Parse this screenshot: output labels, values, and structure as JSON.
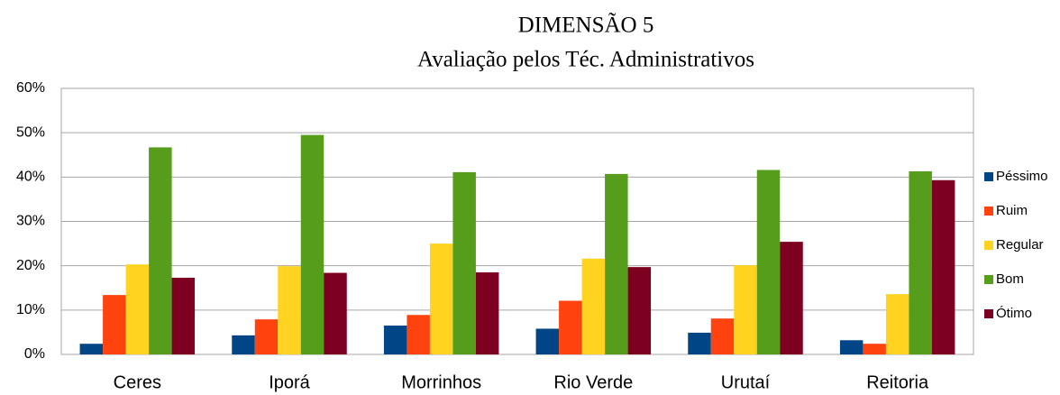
{
  "chart_data": {
    "type": "bar",
    "title": "DIMENSÃO 5",
    "subtitle": "Avaliação pelos Téc. Administrativos",
    "categories": [
      "Ceres",
      "Iporá",
      "Morrinhos",
      "Rio Verde",
      "Urutaí",
      "Reitoria"
    ],
    "series": [
      {
        "name": "Péssimo",
        "color": "#004586",
        "values": [
          2.4,
          4.3,
          6.5,
          5.8,
          4.9,
          3.2
        ]
      },
      {
        "name": "Ruim",
        "color": "#ff420e",
        "values": [
          13.4,
          7.9,
          8.9,
          12.1,
          8.1,
          2.4
        ]
      },
      {
        "name": "Regular",
        "color": "#ffd320",
        "values": [
          20.3,
          19.9,
          25.0,
          21.6,
          20.1,
          13.6
        ]
      },
      {
        "name": "Bom",
        "color": "#579d1c",
        "values": [
          46.7,
          49.5,
          41.1,
          40.7,
          41.6,
          41.3
        ]
      },
      {
        "name": "Ótimo",
        "color": "#7e0021",
        "values": [
          17.3,
          18.4,
          18.5,
          19.7,
          25.4,
          39.3
        ]
      }
    ],
    "ylim": [
      0,
      60
    ],
    "yticks": [
      {
        "value": 0,
        "label": "0%"
      },
      {
        "value": 10,
        "label": "10%"
      },
      {
        "value": 20,
        "label": "20%"
      },
      {
        "value": 30,
        "label": "30%"
      },
      {
        "value": 40,
        "label": "40%"
      },
      {
        "value": 50,
        "label": "50%"
      },
      {
        "value": 60,
        "label": "60%"
      }
    ],
    "grid": true,
    "legend": "right"
  }
}
